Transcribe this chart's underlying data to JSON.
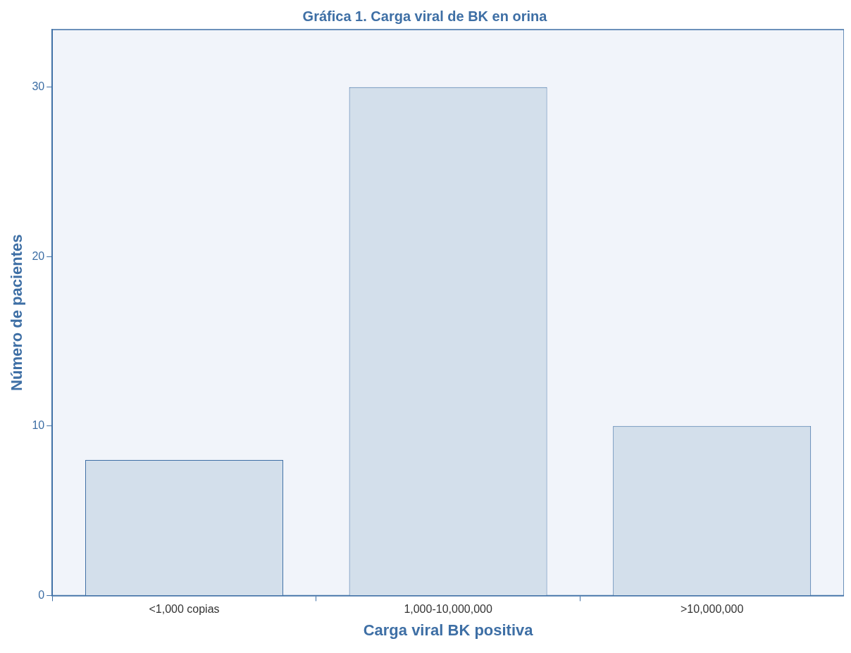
{
  "chart_data": {
    "type": "bar",
    "title": "Gráfica 1. Carga viral de BK en orina",
    "xlabel": "Carga viral BK positiva",
    "ylabel": "Número de pacientes",
    "categories": [
      "<1,000 copias",
      "1,000-10,000,000",
      ">10,000,000"
    ],
    "values": [
      8,
      30,
      10
    ],
    "color": "#d3dfeb",
    "ylim": [
      0,
      33.4
    ],
    "yticks": [
      0,
      10,
      20,
      30
    ],
    "grid": false,
    "legend": false
  }
}
